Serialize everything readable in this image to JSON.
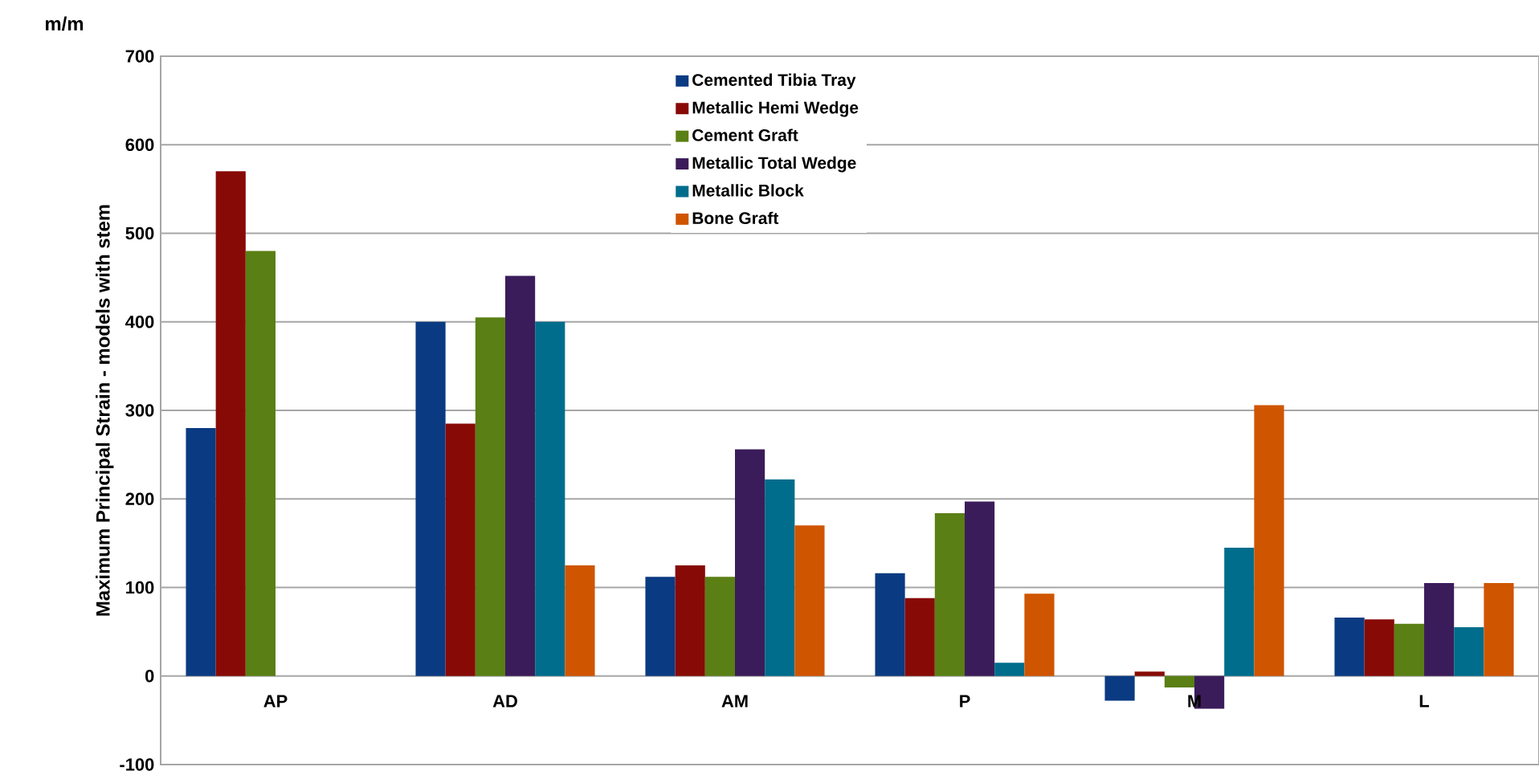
{
  "chart_data": {
    "type": "bar",
    "ylabel": "Maximum Principal Strain - models with stem",
    "annotations": [
      "m/m"
    ],
    "categories": [
      "AP",
      "AD",
      "AM",
      "P",
      "M",
      "L"
    ],
    "series": [
      {
        "name": "Cemented Tibia Tray",
        "color": "#0a3a82",
        "values": [
          280,
          400,
          112,
          116,
          -28,
          66
        ]
      },
      {
        "name": "Metallic Hemi Wedge",
        "color": "#870a06",
        "values": [
          570,
          285,
          125,
          88,
          5,
          64
        ]
      },
      {
        "name": "Cement Graft",
        "color": "#5a7f14",
        "values": [
          480,
          405,
          112,
          184,
          -13,
          59
        ]
      },
      {
        "name": "Metallic Total Wedge",
        "color": "#3b1c5a",
        "values": [
          null,
          452,
          256,
          197,
          -37,
          105
        ]
      },
      {
        "name": "Metallic Block",
        "color": "#006d8c",
        "values": [
          null,
          400,
          222,
          15,
          145,
          55
        ]
      },
      {
        "name": "Bone Graft",
        "color": "#cf5500",
        "values": [
          null,
          125,
          170,
          93,
          306,
          105
        ]
      }
    ],
    "ylim": [
      -100,
      700
    ],
    "yticks": [
      -100,
      0,
      100,
      200,
      300,
      400,
      500,
      600,
      700
    ],
    "grid": "y",
    "legend": "top"
  }
}
